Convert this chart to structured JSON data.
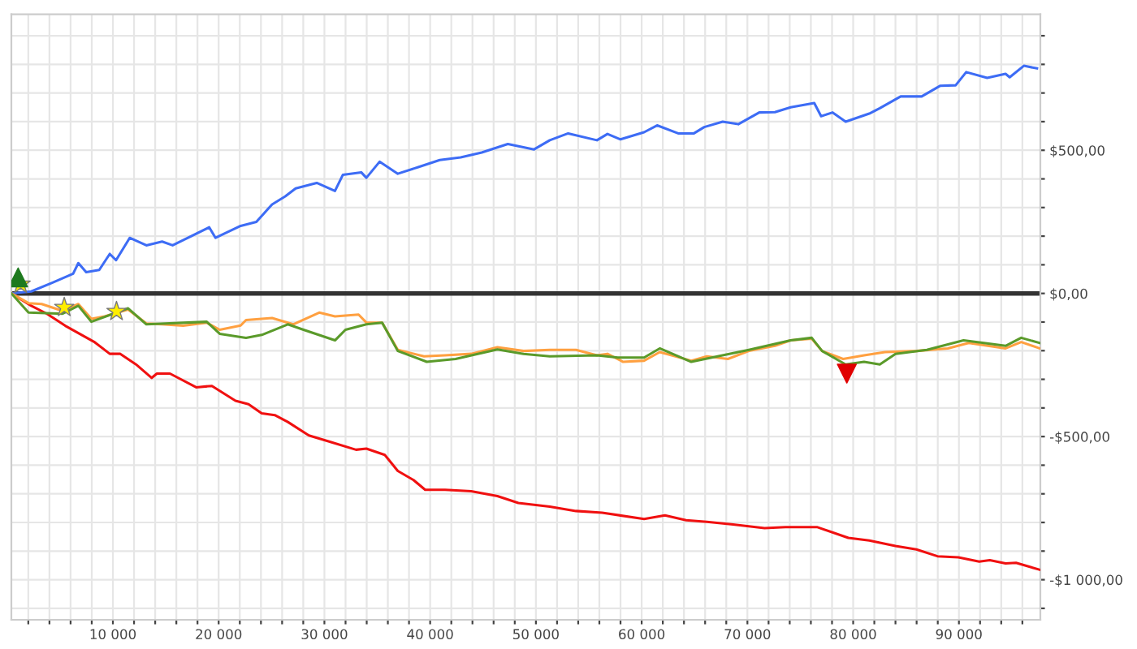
{
  "chart_data": {
    "type": "line",
    "xlim": [
      400,
      97700
    ],
    "ylim": [
      -1140,
      975
    ],
    "xticks": [
      {
        "value": 2000,
        "label": null
      },
      {
        "value": 4000,
        "label": null
      },
      {
        "value": 6000,
        "label": null
      },
      {
        "value": 8000,
        "label": null
      },
      {
        "value": 10000,
        "label": "10 000"
      },
      {
        "value": 12000,
        "label": null
      },
      {
        "value": 14000,
        "label": null
      },
      {
        "value": 16000,
        "label": null
      },
      {
        "value": 18000,
        "label": null
      },
      {
        "value": 20000,
        "label": "20 000"
      },
      {
        "value": 22000,
        "label": null
      },
      {
        "value": 24000,
        "label": null
      },
      {
        "value": 26000,
        "label": null
      },
      {
        "value": 28000,
        "label": null
      },
      {
        "value": 30000,
        "label": "30 000"
      },
      {
        "value": 32000,
        "label": null
      },
      {
        "value": 34000,
        "label": null
      },
      {
        "value": 36000,
        "label": null
      },
      {
        "value": 38000,
        "label": null
      },
      {
        "value": 40000,
        "label": "40 000"
      },
      {
        "value": 42000,
        "label": null
      },
      {
        "value": 44000,
        "label": null
      },
      {
        "value": 46000,
        "label": null
      },
      {
        "value": 48000,
        "label": null
      },
      {
        "value": 50000,
        "label": "50 000"
      },
      {
        "value": 52000,
        "label": null
      },
      {
        "value": 54000,
        "label": null
      },
      {
        "value": 56000,
        "label": null
      },
      {
        "value": 58000,
        "label": null
      },
      {
        "value": 60000,
        "label": "60 000"
      },
      {
        "value": 62000,
        "label": null
      },
      {
        "value": 64000,
        "label": null
      },
      {
        "value": 66000,
        "label": null
      },
      {
        "value": 68000,
        "label": null
      },
      {
        "value": 70000,
        "label": "70 000"
      },
      {
        "value": 72000,
        "label": null
      },
      {
        "value": 74000,
        "label": null
      },
      {
        "value": 76000,
        "label": null
      },
      {
        "value": 78000,
        "label": null
      },
      {
        "value": 80000,
        "label": "80 000"
      },
      {
        "value": 82000,
        "label": null
      },
      {
        "value": 84000,
        "label": null
      },
      {
        "value": 86000,
        "label": null
      },
      {
        "value": 88000,
        "label": null
      },
      {
        "value": 90000,
        "label": "90 000"
      },
      {
        "value": 92000,
        "label": null
      },
      {
        "value": 94000,
        "label": null
      },
      {
        "value": 96000,
        "label": null
      }
    ],
    "yticks": [
      {
        "value": -1100,
        "label": null
      },
      {
        "value": -1000,
        "label": "-$1 000,00"
      },
      {
        "value": -900,
        "label": null
      },
      {
        "value": -800,
        "label": null
      },
      {
        "value": -700,
        "label": null
      },
      {
        "value": -600,
        "label": null
      },
      {
        "value": -500,
        "label": "-$500,00"
      },
      {
        "value": -400,
        "label": null
      },
      {
        "value": -300,
        "label": null
      },
      {
        "value": -200,
        "label": null
      },
      {
        "value": -100,
        "label": null
      },
      {
        "value": 0,
        "label": "$0,00"
      },
      {
        "value": 100,
        "label": null
      },
      {
        "value": 200,
        "label": null
      },
      {
        "value": 300,
        "label": null
      },
      {
        "value": 400,
        "label": null
      },
      {
        "value": 500,
        "label": "$500,00"
      },
      {
        "value": 600,
        "label": null
      },
      {
        "value": 700,
        "label": null
      },
      {
        "value": 800,
        "label": null
      },
      {
        "value": 900,
        "label": null
      }
    ],
    "grid": true,
    "line_style": "solid",
    "ref_lines": [
      {
        "axis": "y",
        "value": 0,
        "label": null,
        "color": "#333333"
      }
    ],
    "series": [
      {
        "color": "#3d6cf5",
        "x": [
          400,
          2274,
          4250,
          6241,
          6732,
          7475,
          8708,
          9703,
          10298,
          11591,
          13166,
          14652,
          15648,
          19110,
          19704,
          22082,
          23568,
          25054,
          26302,
          27283,
          29274,
          30998,
          31741,
          33480,
          33970,
          35218,
          36942,
          38933,
          40909,
          42885,
          44877,
          47344,
          49825,
          51311,
          53050,
          55770,
          56765,
          58000,
          60227,
          61460,
          63450,
          64940,
          65920,
          67660,
          69140,
          71120,
          72600,
          74090,
          76320,
          76970,
          78060,
          79290,
          81520,
          82520,
          84490,
          86480,
          88210,
          89690,
          90690,
          92670,
          94410,
          94800,
          96140,
          97380
        ],
        "values": [
          0,
          7,
          37,
          69,
          106,
          74,
          82,
          138,
          116,
          194,
          168,
          181,
          168,
          231,
          194,
          236,
          250,
          311,
          339,
          367,
          386,
          358,
          414,
          423,
          404,
          460,
          418,
          442,
          466,
          475,
          492,
          522,
          503,
          535,
          559,
          535,
          557,
          538,
          563,
          587,
          559,
          559,
          581,
          600,
          591,
          632,
          633,
          650,
          665,
          619,
          632,
          600,
          628,
          647,
          688,
          688,
          725,
          727,
          773,
          753,
          767,
          755,
          795,
          786
        ]
      },
      {
        "color": "#f01010",
        "x": [
          400,
          2274,
          3760,
          5498,
          8218,
          9703,
          10700,
          12185,
          13671,
          14162,
          15395,
          17876,
          19363,
          21590,
          22825,
          24073,
          25307,
          26540,
          28530,
          30508,
          32990,
          33970,
          35710,
          36940,
          38430,
          39530,
          41400,
          43880,
          46360,
          48340,
          51310,
          53790,
          56260,
          60230,
          62200,
          64200,
          66170,
          68650,
          71620,
          73600,
          76570,
          79540,
          81520,
          84000,
          85980,
          87970,
          89950,
          91920,
          92920,
          94410,
          95400,
          97630
        ],
        "values": [
          0,
          -43,
          -71,
          -113,
          -169,
          -211,
          -211,
          -248,
          -295,
          -280,
          -280,
          -328,
          -323,
          -375,
          -387,
          -419,
          -425,
          -449,
          -496,
          -518,
          -546,
          -542,
          -564,
          -620,
          -652,
          -686,
          -686,
          -691,
          -708,
          -732,
          -745,
          -760,
          -766,
          -788,
          -775,
          -792,
          -798,
          -807,
          -820,
          -816,
          -816,
          -854,
          -863,
          -882,
          -894,
          -918,
          -922,
          -937,
          -932,
          -943,
          -941,
          -965
        ]
      },
      {
        "color": "#ffa040",
        "x": [
          400,
          2020,
          3270,
          5245,
          6732,
          7965,
          9213,
          11440,
          13166,
          14652,
          16643,
          18870,
          20100,
          22080,
          22590,
          25050,
          27045,
          29510,
          31000,
          33230,
          33970,
          35460,
          36940,
          39420,
          41400,
          43880,
          46360,
          48830,
          51310,
          53790,
          55770,
          56765,
          58250,
          60230,
          61710,
          64690,
          66170,
          68150,
          70140,
          72600,
          74090,
          76080,
          77060,
          79050,
          81030,
          83010,
          85980,
          88950,
          90930,
          94410,
          95890,
          97630
        ],
        "values": [
          0,
          -34,
          -37,
          -61,
          -37,
          -89,
          -80,
          -56,
          -105,
          -108,
          -113,
          -102,
          -127,
          -112,
          -93,
          -86,
          -108,
          -67,
          -80,
          -74,
          -102,
          -102,
          -197,
          -220,
          -216,
          -211,
          -188,
          -201,
          -197,
          -197,
          -216,
          -211,
          -239,
          -235,
          -205,
          -235,
          -220,
          -229,
          -201,
          -183,
          -164,
          -158,
          -201,
          -229,
          -216,
          -205,
          -201,
          -192,
          -173,
          -192,
          -170,
          -192
        ]
      },
      {
        "color": "#5a9a2a",
        "x": [
          400,
          2020,
          5245,
          6732,
          7965,
          11440,
          13166,
          18870,
          20100,
          22590,
          24080,
          26540,
          28030,
          31000,
          31990,
          33970,
          35460,
          36940,
          39680,
          42400,
          46360,
          48830,
          51310,
          55770,
          57750,
          60230,
          61710,
          64690,
          70140,
          74090,
          76080,
          77060,
          79290,
          81030,
          82520,
          84000,
          86970,
          90440,
          94410,
          95890,
          97630
        ],
        "values": [
          0,
          -67,
          -71,
          -43,
          -99,
          -52,
          -108,
          -99,
          -141,
          -155,
          -145,
          -108,
          -127,
          -164,
          -127,
          -108,
          -102,
          -201,
          -239,
          -229,
          -196,
          -211,
          -220,
          -216,
          -224,
          -224,
          -192,
          -239,
          -197,
          -164,
          -155,
          -201,
          -248,
          -239,
          -248,
          -211,
          -197,
          -164,
          -183,
          -155,
          -173
        ]
      },
      {
        "type": "scatter",
        "marker": "triangle",
        "color": "#1e7a1e",
        "x": [
          1040
        ],
        "values": [
          56
        ]
      },
      {
        "type": "scatter",
        "marker": "star",
        "color": "#ffee00",
        "x": [
          1280,
          5400,
          10340
        ],
        "values": [
          32,
          -49,
          -63
        ]
      },
      {
        "type": "scatter",
        "marker": "triangle_down",
        "color": "#e00000",
        "x": [
          79400
        ],
        "values": [
          -280
        ]
      }
    ]
  }
}
